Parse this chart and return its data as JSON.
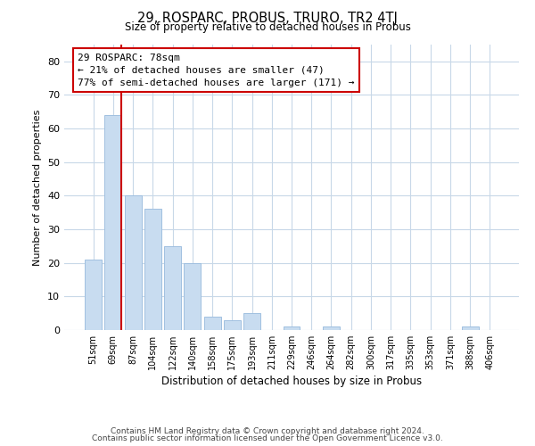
{
  "title": "29, ROSPARC, PROBUS, TRURO, TR2 4TJ",
  "subtitle": "Size of property relative to detached houses in Probus",
  "xlabel": "Distribution of detached houses by size in Probus",
  "ylabel": "Number of detached properties",
  "categories": [
    "51sqm",
    "69sqm",
    "87sqm",
    "104sqm",
    "122sqm",
    "140sqm",
    "158sqm",
    "175sqm",
    "193sqm",
    "211sqm",
    "229sqm",
    "246sqm",
    "264sqm",
    "282sqm",
    "300sqm",
    "317sqm",
    "335sqm",
    "353sqm",
    "371sqm",
    "388sqm",
    "406sqm"
  ],
  "values": [
    21,
    64,
    40,
    36,
    25,
    20,
    4,
    3,
    5,
    0,
    1,
    0,
    1,
    0,
    0,
    0,
    0,
    0,
    0,
    1,
    0
  ],
  "bar_color": "#c8dcf0",
  "bar_edge_color": "#a0c0e0",
  "marker_line_color": "#cc0000",
  "ylim": [
    0,
    85
  ],
  "yticks": [
    0,
    10,
    20,
    30,
    40,
    50,
    60,
    70,
    80
  ],
  "annotation_line1": "29 ROSPARC: 78sqm",
  "annotation_line2": "← 21% of detached houses are smaller (47)",
  "annotation_line3": "77% of semi-detached houses are larger (171) →",
  "footer1": "Contains HM Land Registry data © Crown copyright and database right 2024.",
  "footer2": "Contains public sector information licensed under the Open Government Licence v3.0.",
  "background_color": "#ffffff",
  "grid_color": "#c8d8e8"
}
